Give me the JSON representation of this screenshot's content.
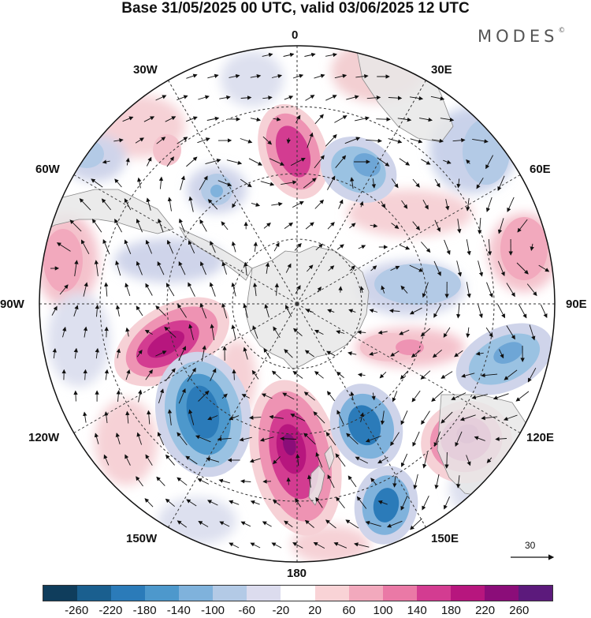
{
  "header": {
    "title": "Base 31/05/2025 00 UTC, valid 03/06/2025 12 UTC",
    "brand": "MODES",
    "brand_mark": "©"
  },
  "map": {
    "projection": "south-polar-stereographic",
    "longitude_labels": {
      "lon_0": "0",
      "lon_30e": "30E",
      "lon_60e": "60E",
      "lon_90e": "90E",
      "lon_120e": "120E",
      "lon_150e": "150E",
      "lon_180": "180",
      "lon_150w": "150W",
      "lon_120w": "120W",
      "lon_90w": "90W",
      "lon_60w": "60W",
      "lon_30w": "30W"
    },
    "reference_vector": "30",
    "anomaly_colors": {
      "strong_negative": "#2b7bb9",
      "negative": "#9ac2e2",
      "weak_negative": "#dde0ef",
      "weak_positive": "#f6d1d6",
      "positive": "#ee93b3",
      "strong_positive": "#b7167e",
      "land": "#e8e8e8",
      "coast": "#888888"
    }
  },
  "colorbar": {
    "colors": [
      "#0f3d5c",
      "#1a5f8f",
      "#2b7bb9",
      "#4d98cc",
      "#7fb2dc",
      "#b3cae6",
      "#dcdcee",
      "#ffffff",
      "#f9d3d6",
      "#f2a9bd",
      "#ea79a6",
      "#d33c91",
      "#b7167e",
      "#8b0d79",
      "#5c1a7c"
    ],
    "tick_labels": [
      "-260",
      "-220",
      "-180",
      "-140",
      "-100",
      "-60",
      "-20",
      "20",
      "60",
      "100",
      "140",
      "180",
      "220",
      "260"
    ]
  }
}
